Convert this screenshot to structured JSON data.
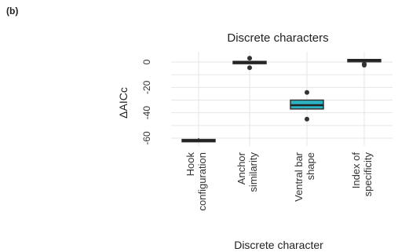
{
  "panel_label": "(b)",
  "chart_data": {
    "type": "box",
    "title": "Discrete characters",
    "xlabel": "Discrete character",
    "ylabel": "ΔAICc",
    "ylim": [
      -65,
      5
    ],
    "yticks": [
      0,
      -20,
      -40,
      -60
    ],
    "grid": true,
    "categories": [
      [
        "Hook",
        "configuration"
      ],
      [
        "Anchor",
        "similarity"
      ],
      [
        "Ventral bar",
        "shape"
      ],
      [
        "Index of",
        "specificity"
      ]
    ],
    "boxes": [
      {
        "category": "Hook configuration",
        "q1": -62,
        "median": -62,
        "q3": -61,
        "whisker_low": -63,
        "whisker_high": -60,
        "outliers": [],
        "fill": "#2b2b2b"
      },
      {
        "category": "Anchor similarity",
        "q1": -0.5,
        "median": 0,
        "q3": 0.5,
        "whisker_low": -0.5,
        "whisker_high": 0.5,
        "outliers": [
          3,
          -4.5
        ],
        "fill": "#2b2b2b"
      },
      {
        "category": "Ventral bar shape",
        "q1": -37,
        "median": -34,
        "q3": -30,
        "whisker_low": -37,
        "whisker_high": -30,
        "outliers": [
          -24,
          -45
        ],
        "fill": "#2bb3c4"
      },
      {
        "category": "Index of specificity",
        "q1": 1,
        "median": 1.5,
        "q3": 2,
        "whisker_low": 1,
        "whisker_high": 2,
        "outliers": [
          -1.5,
          -2.5
        ],
        "fill": "#2b2b2b"
      }
    ]
  }
}
